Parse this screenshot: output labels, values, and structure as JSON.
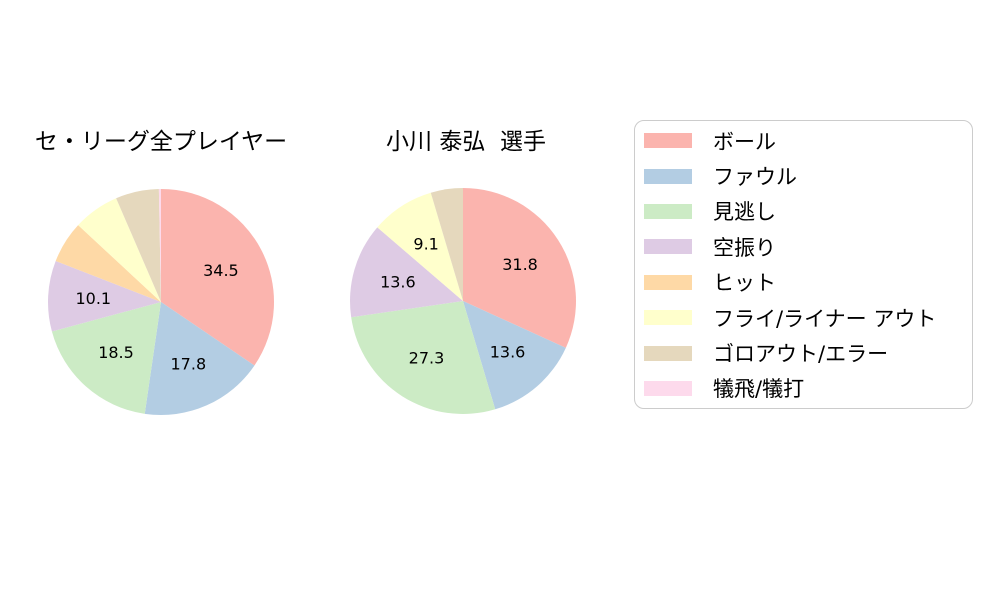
{
  "figure": {
    "background": "#ffffff"
  },
  "chart_data": [
    {
      "type": "pie",
      "title": "セ・リーグ全プレイヤー",
      "start_angle_deg": 90,
      "direction": "clockwise",
      "slices": [
        {
          "label": "ボール",
          "value": 34.5,
          "pct_label": "34.5",
          "color": "#fbb4ae"
        },
        {
          "label": "ファウル",
          "value": 17.8,
          "pct_label": "17.8",
          "color": "#b3cde3"
        },
        {
          "label": "見逃し",
          "value": 18.5,
          "pct_label": "18.5",
          "color": "#ccebc5"
        },
        {
          "label": "空振り",
          "value": 10.1,
          "pct_label": "10.1",
          "color": "#decbe4"
        },
        {
          "label": "ヒット",
          "value": 6.0,
          "pct_label": "",
          "color": "#fed9a6"
        },
        {
          "label": "フライ/ライナー アウト",
          "value": 6.6,
          "pct_label": "",
          "color": "#ffffcc"
        },
        {
          "label": "ゴロアウト/エラー",
          "value": 6.2,
          "pct_label": "",
          "color": "#e5d8bd"
        },
        {
          "label": "犠飛/犠打",
          "value": 0.3,
          "pct_label": "",
          "color": "#fddaec"
        }
      ]
    },
    {
      "type": "pie",
      "title": "小川 泰弘  選手",
      "start_angle_deg": 90,
      "direction": "clockwise",
      "slices": [
        {
          "label": "ボール",
          "value": 31.8,
          "pct_label": "31.8",
          "color": "#fbb4ae"
        },
        {
          "label": "ファウル",
          "value": 13.6,
          "pct_label": "13.6",
          "color": "#b3cde3"
        },
        {
          "label": "見逃し",
          "value": 27.3,
          "pct_label": "27.3",
          "color": "#ccebc5"
        },
        {
          "label": "空振り",
          "value": 13.6,
          "pct_label": "13.6",
          "color": "#decbe4"
        },
        {
          "label": "ヒット",
          "value": 0,
          "pct_label": "",
          "color": "#fed9a6"
        },
        {
          "label": "フライ/ライナー アウト",
          "value": 9.1,
          "pct_label": "9.1",
          "color": "#ffffcc"
        },
        {
          "label": "ゴロアウト/エラー",
          "value": 4.6,
          "pct_label": "",
          "color": "#e5d8bd"
        },
        {
          "label": "犠飛/犠打",
          "value": 0,
          "pct_label": "",
          "color": "#fddaec"
        }
      ]
    }
  ],
  "legend": {
    "items": [
      {
        "label": "ボール",
        "color": "#fbb4ae"
      },
      {
        "label": "ファウル",
        "color": "#b3cde3"
      },
      {
        "label": "見逃し",
        "color": "#ccebc5"
      },
      {
        "label": "空振り",
        "color": "#decbe4"
      },
      {
        "label": "ヒット",
        "color": "#fed9a6"
      },
      {
        "label": "フライ/ライナー アウト",
        "color": "#ffffcc"
      },
      {
        "label": "ゴロアウト/エラー",
        "color": "#e5d8bd"
      },
      {
        "label": "犠飛/犠打",
        "color": "#fddaec"
      }
    ]
  }
}
